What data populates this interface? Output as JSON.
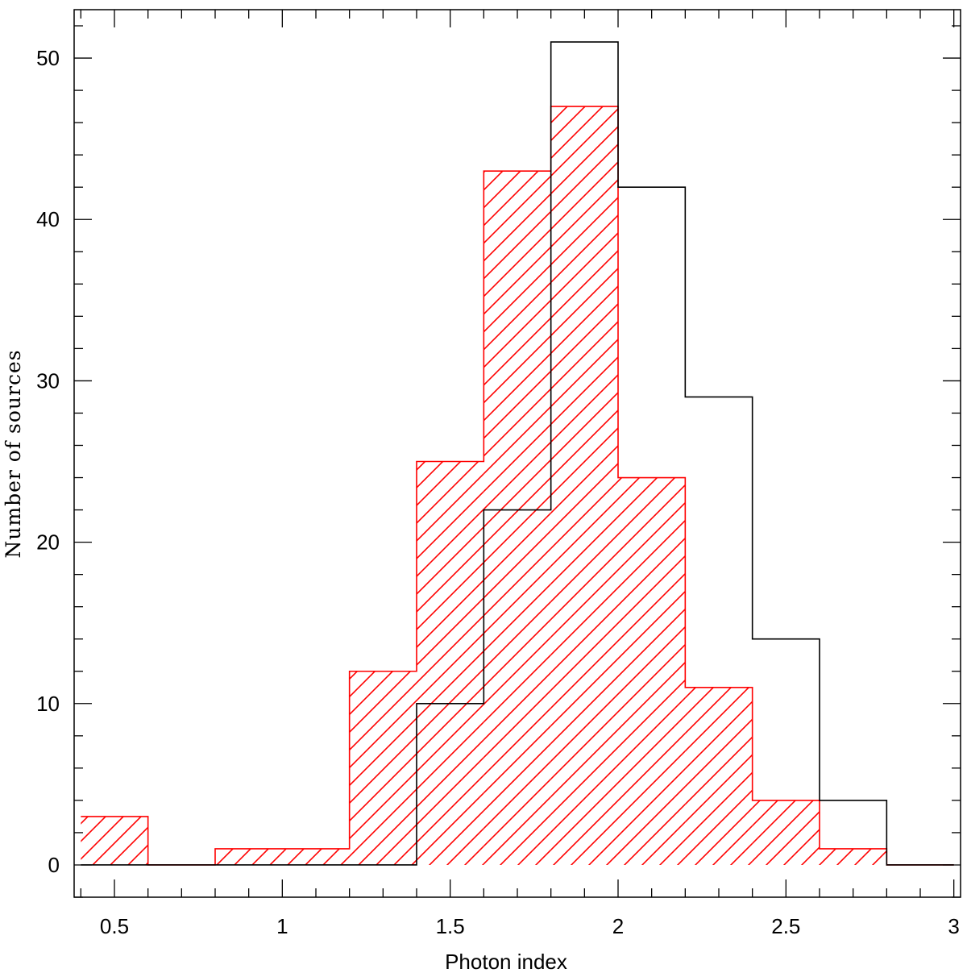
{
  "chart_data": {
    "type": "histogram",
    "title": "",
    "xlabel": "Photon index",
    "ylabel": "Number of sources",
    "xlim": [
      0.38,
      3.02
    ],
    "ylim": [
      -2,
      53
    ],
    "x_ticks": [
      0.5,
      1,
      1.5,
      2,
      2.5,
      3
    ],
    "x_tick_labels": [
      "0.5",
      "1",
      "1.5",
      "2",
      "2.5",
      "3"
    ],
    "x_minor_step": 0.1,
    "y_ticks": [
      0,
      10,
      20,
      30,
      40,
      50
    ],
    "y_tick_labels": [
      "0",
      "10",
      "20",
      "30",
      "40",
      "50"
    ],
    "y_minor_step": 2,
    "grid": false,
    "bin_edges": [
      0.4,
      0.6,
      0.8,
      1.0,
      1.2,
      1.4,
      1.6,
      1.8,
      2.0,
      2.2,
      2.4,
      2.6,
      2.8,
      3.0
    ],
    "series": [
      {
        "style": "outline",
        "color": "#000000",
        "values": [
          0,
          0,
          0,
          0,
          0,
          10,
          22,
          51,
          42,
          29,
          14,
          4,
          0
        ]
      },
      {
        "style": "hatched",
        "color": "#ff0000",
        "values": [
          3,
          0,
          1,
          1,
          12,
          25,
          43,
          47,
          24,
          11,
          4,
          1,
          0
        ]
      }
    ]
  }
}
